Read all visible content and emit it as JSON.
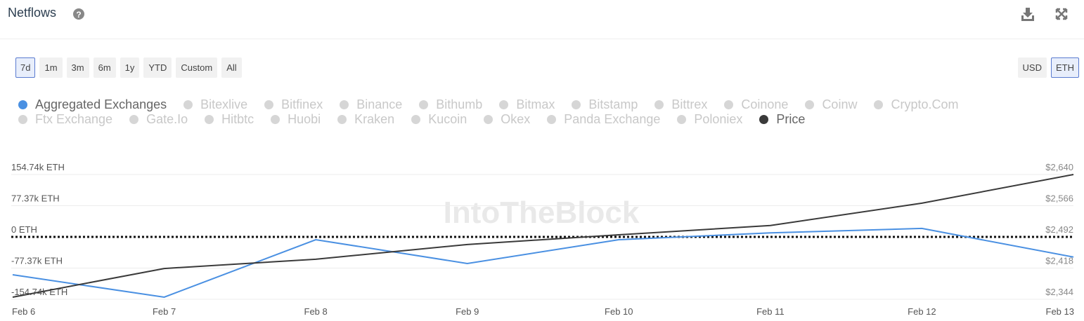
{
  "chart_data": {
    "type": "line",
    "title": "Netflows",
    "range_buttons": [
      "7d",
      "1m",
      "3m",
      "6m",
      "1y",
      "YTD",
      "Custom",
      "All"
    ],
    "selected_range_index": 0,
    "currency_buttons": [
      "USD",
      "ETH"
    ],
    "selected_currency_index": 1,
    "watermark": "IntoTheBlock",
    "categories": [
      "Feb 6",
      "Feb 7",
      "Feb 8",
      "Feb 9",
      "Feb 10",
      "Feb 11",
      "Feb 12",
      "Feb 13"
    ],
    "series": [
      {
        "name": "Aggregated Exchanges",
        "color": "#4a90e2",
        "values": [
          -93.9,
          -149.5,
          -7,
          -66,
          -7,
          10,
          21,
          -50
        ]
      },
      {
        "name": "Price",
        "color": "#3a3a3a",
        "axis": "y2",
        "values": [
          2349,
          2417,
          2439,
          2474,
          2497,
          2519,
          2572,
          2640
        ]
      }
    ],
    "inactive_series": [
      "Bitexlive",
      "Bitfinex",
      "Binance",
      "Bithumb",
      "Bitmax",
      "Bitstamp",
      "Bittrex",
      "Coinone",
      "Coinw",
      "Crypto.Com",
      "Ftx Exchange",
      "Gate.Io",
      "Hitbtc",
      "Huobi",
      "Kraken",
      "Kucoin",
      "Okex",
      "Panda Exchange",
      "Poloniex"
    ],
    "inactive_color": "#d6d6d6",
    "ylim": [
      -154.74,
      154.74
    ],
    "yticks": [
      {
        "value": 154.74,
        "label": "154.74k ETH"
      },
      {
        "value": 77.37,
        "label": "77.37k ETH"
      },
      {
        "value": 0,
        "label": "0 ETH"
      },
      {
        "value": -77.37,
        "label": "-77.37k ETH"
      },
      {
        "value": -154.74,
        "label": "-154.74k ETH"
      }
    ],
    "y2lim": [
      2344,
      2640
    ],
    "y2ticks": [
      {
        "value": 2640,
        "label": "$2,640"
      },
      {
        "value": 2566,
        "label": "$2,566"
      },
      {
        "value": 2492,
        "label": "$2,492"
      },
      {
        "value": 2418,
        "label": "$2,418"
      },
      {
        "value": 2344,
        "label": "$2,344"
      }
    ],
    "grid": true
  }
}
